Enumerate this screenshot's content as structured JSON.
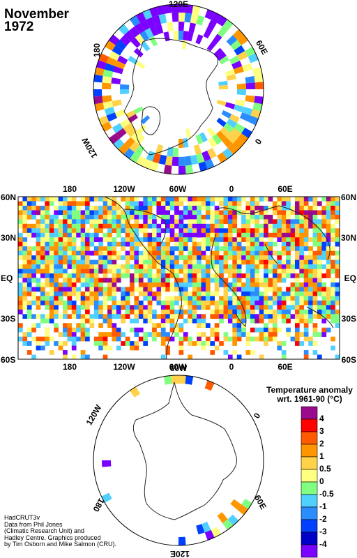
{
  "title": {
    "month": "November",
    "year": "1972"
  },
  "north_polar_labels": [
    "120E",
    "60E",
    "0",
    "120W",
    "180"
  ],
  "map_lat_labels": [
    "60N",
    "30N",
    "EQ",
    "30S",
    "60S"
  ],
  "map_lon_labels": [
    "180",
    "120W",
    "60W",
    "0",
    "60E"
  ],
  "south_polar_labels": [
    "60W",
    "0",
    "60E",
    "120E",
    "180",
    "120W"
  ],
  "legend": {
    "title_line1": "Temperature anomaly",
    "title_line2": "wrt. 1961-90  (°C)",
    "ticks": [
      "4",
      "3",
      "2",
      "1",
      "0.5",
      "0",
      "-0.5",
      "-1",
      "-2",
      "-3",
      "-4"
    ],
    "colors": [
      "#9a0a8c",
      "#ff0000",
      "#ff5a00",
      "#ff9600",
      "#ffd24a",
      "#ffff80",
      "#80ff80",
      "#50d0ff",
      "#2a8cff",
      "#0040ff",
      "#0000c8",
      "#7a00ff"
    ]
  },
  "credits": [
    "HadCRUT3v",
    "Data from Phil Jones",
    "(Climatic Research Unit) and",
    "Hadley Centre.  Graphics produced",
    "by Tim Osborn and Mike Salmon (CRU)."
  ]
}
